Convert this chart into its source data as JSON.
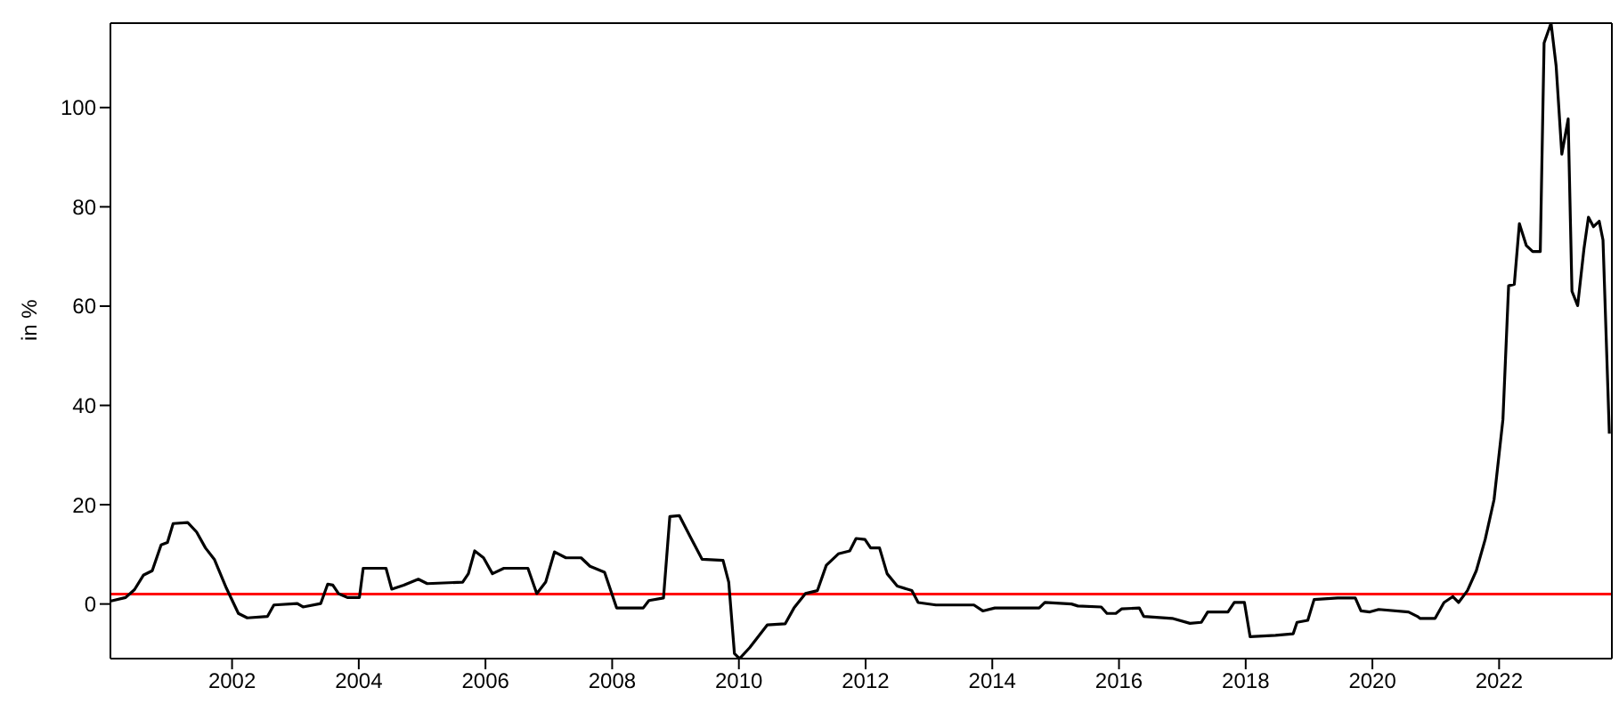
{
  "chart_data": {
    "type": "line",
    "ylabel": "in %",
    "xlim": [
      2000.08,
      2023.78
    ],
    "ylim": [
      -11,
      117
    ],
    "xticks": [
      2002,
      2004,
      2006,
      2008,
      2010,
      2012,
      2014,
      2016,
      2018,
      2020,
      2022
    ],
    "yticks": [
      0,
      20,
      40,
      60,
      80,
      100
    ],
    "marker": "none",
    "line_style": "solid",
    "ref_lines": [
      {
        "axis": "y",
        "value": 2,
        "color": "#ff0000"
      }
    ],
    "series": [
      {
        "color": "#000000",
        "x": [
          2000.09,
          2000.32,
          2000.46,
          2000.6,
          2000.74,
          2000.88,
          2000.98,
          2001.07,
          2001.3,
          2001.44,
          2001.58,
          2001.72,
          2001.91,
          2002.1,
          2002.24,
          2002.56,
          2002.66,
          2003.03,
          2003.12,
          2003.4,
          2003.51,
          2003.59,
          2003.68,
          2003.82,
          2004.01,
          2004.07,
          2004.43,
          2004.52,
          2004.71,
          2004.94,
          2005.08,
          2005.64,
          2005.73,
          2005.83,
          2005.97,
          2006.11,
          2006.29,
          2006.67,
          2006.81,
          2006.95,
          2007.09,
          2007.27,
          2007.51,
          2007.65,
          2007.88,
          2008.07,
          2008.49,
          2008.58,
          2008.81,
          2008.91,
          2009.06,
          2009.23,
          2009.42,
          2009.75,
          2009.84,
          2009.93,
          2010.01,
          2010.17,
          2010.45,
          2010.73,
          2010.87,
          2011.05,
          2011.24,
          2011.38,
          2011.57,
          2011.75,
          2011.85,
          2011.99,
          2012.08,
          2012.22,
          2012.34,
          2012.5,
          2012.73,
          2012.83,
          2013.11,
          2013.71,
          2013.85,
          2014.04,
          2014.74,
          2014.83,
          2015.25,
          2015.35,
          2015.72,
          2015.81,
          2015.95,
          2016.04,
          2016.32,
          2016.39,
          2016.84,
          2017.12,
          2017.3,
          2017.4,
          2017.72,
          2017.82,
          2017.98,
          2018.07,
          2018.47,
          2018.75,
          2018.81,
          2018.98,
          2019.08,
          2019.45,
          2019.73,
          2019.82,
          2019.96,
          2020.1,
          2020.57,
          2020.71,
          2020.75,
          2020.99,
          2021.13,
          2021.27,
          2021.36,
          2021.5,
          2021.64,
          2021.78,
          2021.92,
          2022.06,
          2022.15,
          2022.24,
          2022.32,
          2022.43,
          2022.53,
          2022.65,
          2022.71,
          2022.82,
          2022.9,
          2022.99,
          2023.09,
          2023.15,
          2023.24,
          2023.34,
          2023.41,
          2023.49,
          2023.58,
          2023.64,
          2023.74
        ],
        "values": [
          0.6,
          1.3,
          2.9,
          5.8,
          6.7,
          11.9,
          12.4,
          16.2,
          16.4,
          14.5,
          11.3,
          9.0,
          3.2,
          -1.9,
          -2.8,
          -2.5,
          -0.2,
          0.1,
          -0.6,
          0.1,
          4.0,
          3.8,
          2.1,
          1.3,
          1.3,
          7.2,
          7.2,
          3.0,
          3.8,
          5.0,
          4.1,
          4.4,
          6.1,
          10.7,
          9.3,
          6.1,
          7.2,
          7.2,
          2.1,
          4.4,
          10.5,
          9.3,
          9.3,
          7.6,
          6.4,
          -0.8,
          -0.8,
          0.7,
          1.2,
          17.6,
          17.8,
          13.6,
          9.0,
          8.8,
          4.4,
          -10,
          -11,
          -8.8,
          -4.2,
          -4.0,
          -0.8,
          2.1,
          2.7,
          7.8,
          10.1,
          10.7,
          13.2,
          13.0,
          11.3,
          11.3,
          6.1,
          3.6,
          2.7,
          0.3,
          -0.2,
          -0.2,
          -1.4,
          -0.8,
          -0.8,
          0.3,
          0,
          -0.4,
          -0.6,
          -1.9,
          -1.9,
          -1.0,
          -0.8,
          -2.5,
          -2.9,
          -3.9,
          -3.7,
          -1.6,
          -1.6,
          0.3,
          0.3,
          -6.6,
          -6.3,
          -6.0,
          -3.7,
          -3.3,
          0.9,
          1.2,
          1.2,
          -1.4,
          -1.6,
          -1.1,
          -1.6,
          -2.5,
          -2.9,
          -2.9,
          0.3,
          1.5,
          0.3,
          2.7,
          6.7,
          13.0,
          21.0,
          37.1,
          64.1,
          64.4,
          76.6,
          72.2,
          71.0,
          71.0,
          113,
          117,
          108.4,
          90.6,
          97.7,
          63.0,
          60.1,
          71.6,
          77.9,
          76.0,
          77.1,
          73.3,
          34.3
        ]
      }
    ]
  }
}
